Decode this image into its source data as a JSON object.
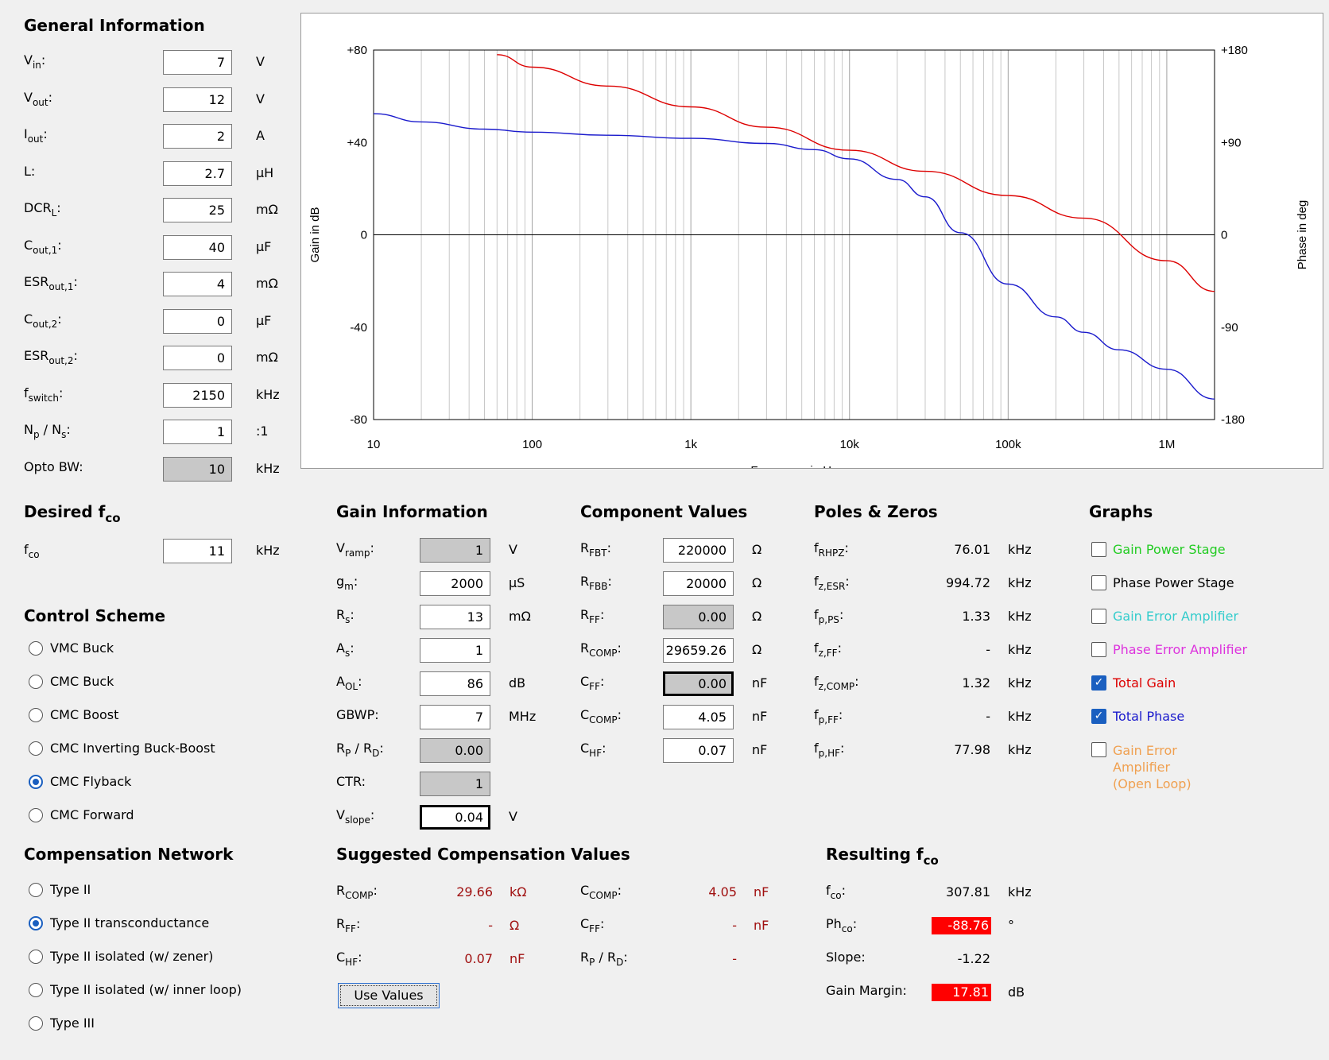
{
  "general": {
    "title": "General Information",
    "rows": [
      {
        "label": "V",
        "sub": "in",
        "suffix": ":",
        "value": "7",
        "unit": "V"
      },
      {
        "label": "V",
        "sub": "out",
        "suffix": ":",
        "value": "12",
        "unit": "V"
      },
      {
        "label": "I",
        "sub": "out",
        "suffix": ":",
        "value": "2",
        "unit": "A"
      },
      {
        "label": "L:",
        "sub": "",
        "suffix": "",
        "value": "2.7",
        "unit": "μH"
      },
      {
        "label": "DCR",
        "sub": "L",
        "suffix": ":",
        "value": "25",
        "unit": "mΩ"
      },
      {
        "label": "C",
        "sub": "out,1",
        "suffix": ":",
        "value": "40",
        "unit": "μF"
      },
      {
        "label": "ESR",
        "sub": "out,1",
        "suffix": ":",
        "value": "4",
        "unit": "mΩ"
      },
      {
        "label": "C",
        "sub": "out,2",
        "suffix": ":",
        "value": "0",
        "unit": "μF"
      },
      {
        "label": "ESR",
        "sub": "out,2",
        "suffix": ":",
        "value": "0",
        "unit": "mΩ"
      },
      {
        "label": "f",
        "sub": "switch",
        "suffix": ":",
        "value": "2150",
        "unit": "kHz"
      },
      {
        "label": "N",
        "sub": "p",
        "suffix": " / N",
        "sub2": "s",
        "suffix2": ":",
        "value": "1",
        "unit": ":1"
      },
      {
        "label": "Opto BW:",
        "sub": "",
        "suffix": "",
        "value": "10",
        "unit": "kHz",
        "readonly": true
      }
    ]
  },
  "desired": {
    "title": "Desired f",
    "title_sub": "co",
    "label": "f",
    "sub": "co",
    "value": "11",
    "unit": "kHz"
  },
  "control": {
    "title": "Control Scheme",
    "options": [
      "VMC Buck",
      "CMC Buck",
      "CMC Boost",
      "CMC Inverting Buck-Boost",
      "CMC Flyback",
      "CMC Forward"
    ],
    "selected": 4
  },
  "compnet": {
    "title": "Compensation Network",
    "options": [
      "Type II",
      "Type II transconductance",
      "Type II isolated (w/ zener)",
      "Type II isolated (w/ inner loop)",
      "Type III"
    ],
    "selected": 1
  },
  "gain_info": {
    "title": "Gain Information",
    "rows": [
      {
        "label": "V",
        "sub": "ramp",
        "suffix": ":",
        "value": "1",
        "unit": "V",
        "readonly": true
      },
      {
        "label": "g",
        "sub": "m",
        "suffix": ":",
        "value": "2000",
        "unit": "μS"
      },
      {
        "label": "R",
        "sub": "s",
        "suffix": ":",
        "value": "13",
        "unit": "mΩ"
      },
      {
        "label": "A",
        "sub": "s",
        "suffix": ":",
        "value": "1",
        "unit": ""
      },
      {
        "label": "A",
        "sub": "OL",
        "suffix": ":",
        "value": "86",
        "unit": "dB"
      },
      {
        "label": "GBWP:",
        "sub": "",
        "suffix": "",
        "value": "7",
        "unit": "MHz"
      },
      {
        "label": "R",
        "sub": "P",
        "suffix": " / R",
        "sub2": "D",
        "suffix2": ":",
        "value": "0.00",
        "unit": "",
        "readonly": true
      },
      {
        "label": "CTR:",
        "sub": "",
        "suffix": "",
        "value": "1",
        "unit": "",
        "readonly": true
      },
      {
        "label": "V",
        "sub": "slope",
        "suffix": ":",
        "value": "0.04",
        "unit": "V",
        "bold": true
      }
    ]
  },
  "components": {
    "title": "Component Values",
    "rows": [
      {
        "label": "R",
        "sub": "FBT",
        "suffix": ":",
        "value": "220000",
        "unit": "Ω"
      },
      {
        "label": "R",
        "sub": "FBB",
        "suffix": ":",
        "value": "20000",
        "unit": "Ω"
      },
      {
        "label": "R",
        "sub": "FF",
        "suffix": ":",
        "value": "0.00",
        "unit": "Ω",
        "readonly": true
      },
      {
        "label": "R",
        "sub": "COMP",
        "suffix": ":",
        "value": "29659.26",
        "unit": "Ω"
      },
      {
        "label": "C",
        "sub": "FF",
        "suffix": ":",
        "value": "0.00",
        "unit": "nF",
        "readonly": true,
        "bold": true
      },
      {
        "label": "C",
        "sub": "COMP",
        "suffix": ":",
        "value": "4.05",
        "unit": "nF"
      },
      {
        "label": "C",
        "sub": "HF",
        "suffix": ":",
        "value": "0.07",
        "unit": "nF"
      }
    ]
  },
  "poles": {
    "title": "Poles & Zeros",
    "rows": [
      {
        "label": "f",
        "sub": "RHPZ",
        "suffix": ":",
        "value": "76.01",
        "unit": "kHz"
      },
      {
        "label": "f",
        "sub": "z,ESR",
        "suffix": ":",
        "value": "994.72",
        "unit": "kHz"
      },
      {
        "label": "f",
        "sub": "p,PS",
        "suffix": ":",
        "value": "1.33",
        "unit": "kHz"
      },
      {
        "label": "f",
        "sub": "z,FF",
        "suffix": ":",
        "value": "-",
        "unit": "kHz"
      },
      {
        "label": "f",
        "sub": "z,COMP",
        "suffix": ":",
        "value": "1.32",
        "unit": "kHz"
      },
      {
        "label": "f",
        "sub": "p,FF",
        "suffix": ":",
        "value": "-",
        "unit": "kHz"
      },
      {
        "label": "f",
        "sub": "p,HF",
        "suffix": ":",
        "value": "77.98",
        "unit": "kHz"
      }
    ]
  },
  "graphs": {
    "title": "Graphs",
    "items": [
      {
        "label": "Gain Power Stage",
        "color": "#22cc22",
        "checked": false
      },
      {
        "label": "Phase Power Stage",
        "color": "#000000",
        "checked": false
      },
      {
        "label": "Gain Error Amplifier",
        "color": "#33cccc",
        "checked": false
      },
      {
        "label": "Phase Error Amplifier",
        "color": "#dd33dd",
        "checked": false
      },
      {
        "label": "Total Gain",
        "color": "#dd0000",
        "checked": true
      },
      {
        "label": "Total Phase",
        "color": "#1a1acc",
        "checked": true
      },
      {
        "label": "Gain Error Amplifier (Open Loop)",
        "lines": [
          "Gain Error",
          "Amplifier",
          "(Open Loop)"
        ],
        "color": "#f0a050",
        "checked": false
      }
    ]
  },
  "suggested": {
    "title": "Suggested Compensation Values",
    "left": [
      {
        "label": "R",
        "sub": "COMP",
        "suffix": ":",
        "value": "29.66",
        "unit": "kΩ"
      },
      {
        "label": "R",
        "sub": "FF",
        "suffix": ":",
        "value": "-",
        "unit": "Ω"
      },
      {
        "label": "C",
        "sub": "HF",
        "suffix": ":",
        "value": "0.07",
        "unit": "nF"
      }
    ],
    "right": [
      {
        "label": "C",
        "sub": "COMP",
        "suffix": ":",
        "value": "4.05",
        "unit": "nF"
      },
      {
        "label": "C",
        "sub": "FF",
        "suffix": ":",
        "value": "-",
        "unit": "nF"
      },
      {
        "label": "R",
        "sub": "P",
        "suffix": " / R",
        "sub2": "D",
        "suffix2": ":",
        "value": "-",
        "unit": ""
      }
    ],
    "button": "Use Values"
  },
  "resulting": {
    "title": "Resulting f",
    "title_sub": "co",
    "rows": [
      {
        "label": "f",
        "sub": "co",
        "suffix": ":",
        "value": "307.81",
        "unit": "kHz",
        "flag": false
      },
      {
        "label": "Ph",
        "sub": "co",
        "suffix": ":",
        "value": "-88.76",
        "unit": "°",
        "flag": true
      },
      {
        "label": "Slope:",
        "sub": "",
        "suffix": "",
        "value": "-1.22",
        "unit": "",
        "flag": false
      },
      {
        "label": "Gain Margin:",
        "sub": "",
        "suffix": "",
        "value": "17.81",
        "unit": "dB",
        "flag": true
      }
    ]
  },
  "chart_data": {
    "type": "line",
    "xlabel": "Frequency in Hz",
    "ylabel": "Gain in dB",
    "y2label": "Phase in deg",
    "x_scale": "log",
    "xlim": [
      10,
      2000000
    ],
    "ylim": [
      -80,
      80
    ],
    "y2lim": [
      -180,
      180
    ],
    "x_ticks": [
      10,
      100,
      1000,
      10000,
      100000,
      1000000
    ],
    "x_tick_labels": [
      "10",
      "100",
      "1k",
      "10k",
      "100k",
      "1M"
    ],
    "y_ticks": [
      80,
      40,
      0,
      -40,
      -80
    ],
    "y_tick_labels": [
      "+80",
      "+40",
      "0",
      "-40",
      "-80"
    ],
    "y2_tick_labels": [
      "+180",
      "+90",
      "0",
      "-90",
      "-180"
    ],
    "grid": true,
    "series": [
      {
        "name": "Total Gain",
        "axis": "left",
        "color": "#dd0000",
        "x": [
          60,
          100,
          300,
          1000,
          3000,
          10000,
          30000,
          100000,
          300000,
          1000000,
          2000000
        ],
        "y": [
          78,
          72.6,
          64.4,
          55.4,
          46.6,
          36.6,
          27.5,
          17,
          7.2,
          -11.2,
          -24.5
        ]
      },
      {
        "name": "Total Phase",
        "axis": "right",
        "color": "#1a1acc",
        "x": [
          10,
          20,
          50,
          100,
          300,
          1000,
          3000,
          6000,
          10000,
          20000,
          30000,
          50000,
          100000,
          200000,
          300000,
          500000,
          1000000,
          2000000
        ],
        "y": [
          118,
          110,
          103,
          100,
          97,
          94,
          89,
          83,
          74,
          54,
          37,
          2,
          -48,
          -80,
          -95,
          -112,
          -131,
          -160
        ]
      }
    ]
  }
}
